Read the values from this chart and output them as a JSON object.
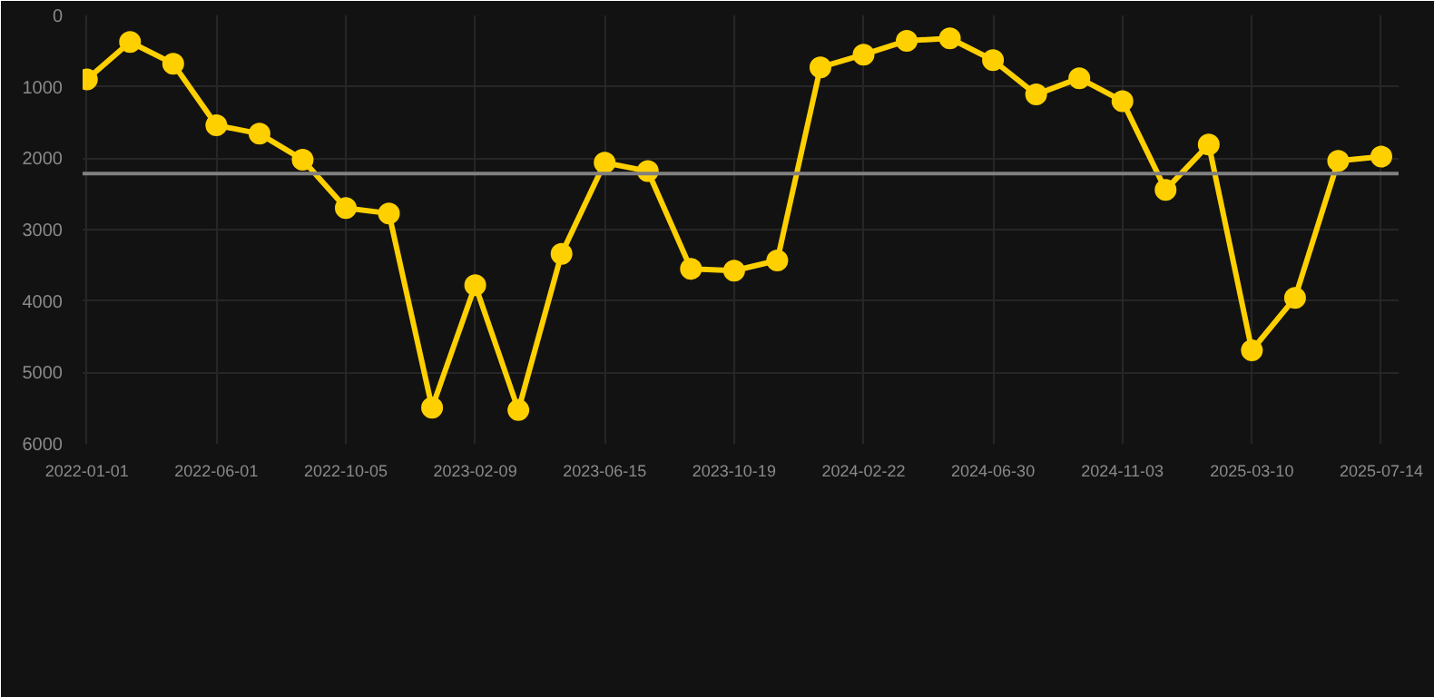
{
  "chart_data": {
    "type": "line",
    "categories": [
      "2022-01-01",
      null,
      null,
      "2022-06-01",
      null,
      null,
      "2022-10-05",
      null,
      null,
      "2023-02-09",
      null,
      null,
      "2023-06-15",
      null,
      null,
      "2023-10-19",
      null,
      null,
      "2024-02-22",
      null,
      null,
      "2024-06-30",
      null,
      null,
      "2024-11-03",
      null,
      null,
      "2025-03-10",
      null,
      null,
      "2025-07-14"
    ],
    "series": [
      {
        "color": "#ffd000",
        "values": [
          896,
          372,
          676,
          1538,
          1657,
          2020,
          2697,
          2773,
          5495,
          3779,
          5528,
          3339,
          2063,
          2181,
          3550,
          3575,
          3432,
          727,
          549,
          355,
          321,
          626,
          1107,
          879,
          1200,
          2443,
          1809,
          4691,
          3956,
          2037,
          1978
        ]
      }
    ],
    "ylim": [
      6000,
      0
    ],
    "yticks": [
      0,
      1000,
      2000,
      3000,
      4000,
      5000,
      6000
    ],
    "ref_lines": [
      {
        "axis": "y",
        "value": 2215,
        "color": "#808080"
      }
    ],
    "grid": true,
    "marker": "circle",
    "line_style": "solid"
  }
}
